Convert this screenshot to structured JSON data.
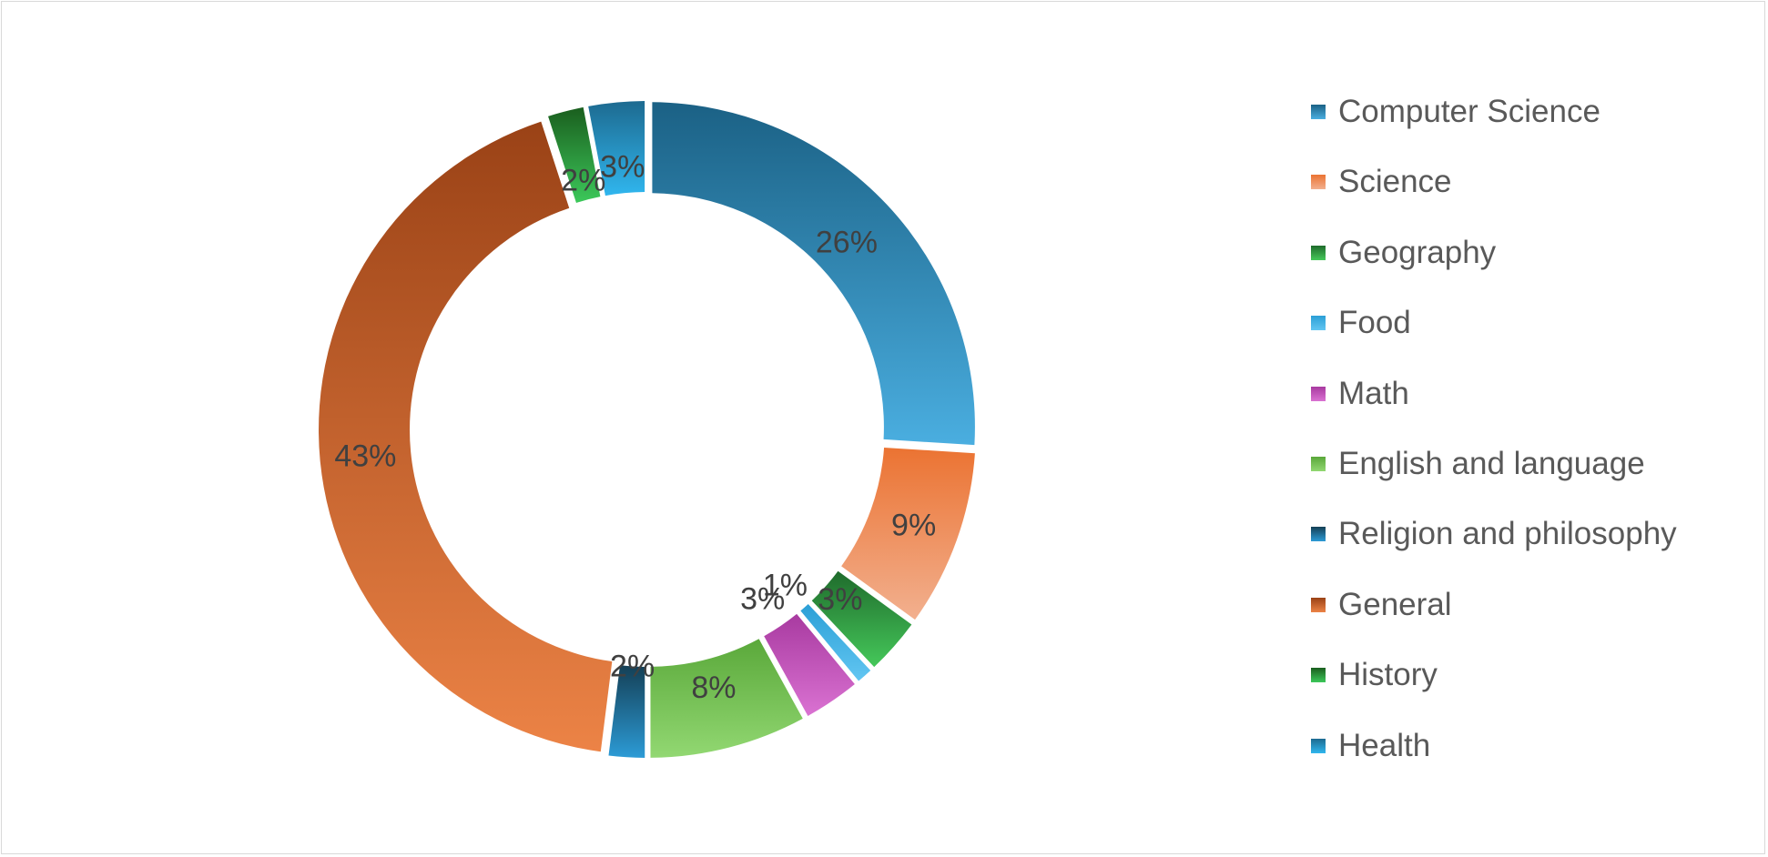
{
  "chart_data": {
    "type": "pie",
    "variant": "donut",
    "title": "",
    "legend_placement": "right",
    "categories": [
      "Computer Science",
      "Science",
      "Geography",
      "Food",
      "Math",
      "English and language",
      "Religion and philosophy",
      "General",
      "History",
      "Health"
    ],
    "values": [
      26,
      9,
      3,
      1,
      3,
      8,
      2,
      43,
      2,
      3
    ],
    "data_labels": [
      "26%",
      "9%",
      "3%",
      "1%",
      "3%",
      "8%",
      "2%",
      "43%",
      "2%",
      "3%"
    ],
    "colors": [
      {
        "dark": "#1b6185",
        "light": "#4aaee0"
      },
      {
        "dark": "#eb7332",
        "light": "#f2b08f"
      },
      {
        "dark": "#1f6b2c",
        "light": "#45c85a"
      },
      {
        "dark": "#2b9fd6",
        "light": "#62c6f2"
      },
      {
        "dark": "#a83aa0",
        "light": "#da72d2"
      },
      {
        "dark": "#5aa83a",
        "light": "#92d872"
      },
      {
        "dark": "#143f55",
        "light": "#2c9bd6"
      },
      {
        "dark": "#9a4216",
        "light": "#ec8346"
      },
      {
        "dark": "#1a5e1e",
        "light": "#3cc85a"
      },
      {
        "dark": "#1d6a90",
        "light": "#30b6ee"
      }
    ]
  }
}
